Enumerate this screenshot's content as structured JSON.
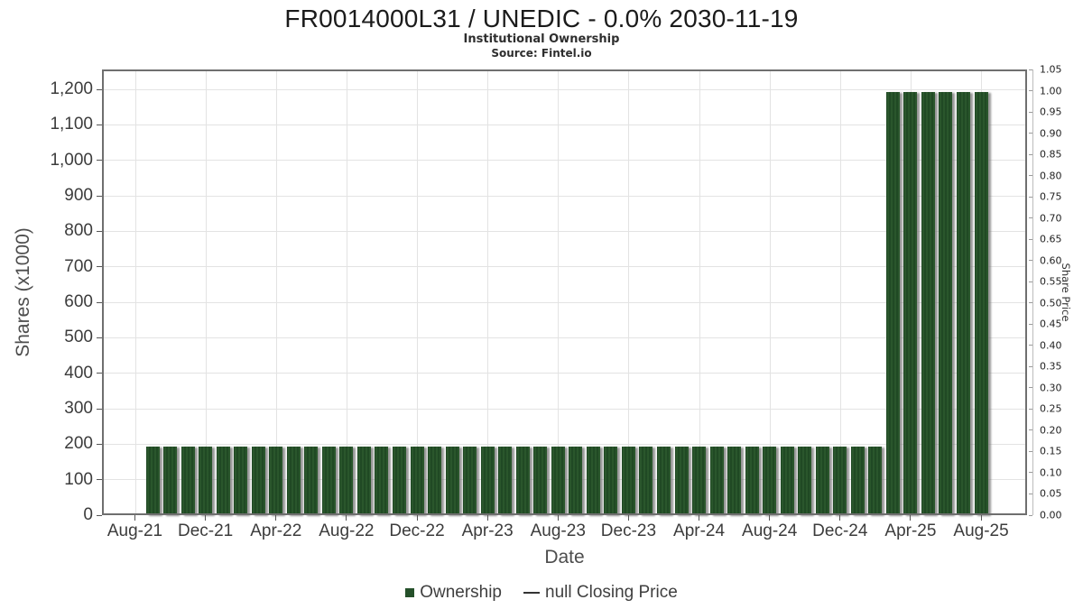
{
  "header": {
    "title": "FR0014000L31 / UNEDIC - 0.0% 2030-11-19",
    "subtitle": "Institutional Ownership",
    "source": "Source: Fintel.io"
  },
  "chart_data": {
    "type": "bar",
    "title": "FR0014000L31 / UNEDIC - 0.0% 2030-11-19",
    "subtitle": "Institutional Ownership",
    "source": "Source: Fintel.io",
    "xlabel": "Date",
    "ylabel_left": "Shares (x1000)",
    "ylabel_right": "Share Price",
    "legend_position": "bottom-center",
    "grid": true,
    "categories": [
      "Sep-21",
      "Oct-21",
      "Nov-21",
      "Dec-21",
      "Jan-22",
      "Feb-22",
      "Mar-22",
      "Apr-22",
      "May-22",
      "Jun-22",
      "Jul-22",
      "Aug-22",
      "Sep-22",
      "Oct-22",
      "Nov-22",
      "Dec-22",
      "Jan-23",
      "Feb-23",
      "Mar-23",
      "Apr-23",
      "May-23",
      "Jun-23",
      "Jul-23",
      "Aug-23",
      "Sep-23",
      "Oct-23",
      "Nov-23",
      "Dec-23",
      "Jan-24",
      "Feb-24",
      "Mar-24",
      "Apr-24",
      "May-24",
      "Jun-24",
      "Jul-24",
      "Aug-24",
      "Sep-24",
      "Oct-24",
      "Nov-24",
      "Dec-24",
      "Jan-25",
      "Feb-25",
      "Mar-25",
      "Apr-25",
      "May-25",
      "Jun-25",
      "Jul-25",
      "Aug-25"
    ],
    "series": [
      {
        "name": "Ownership",
        "type": "bar",
        "color": "#25502a",
        "values": [
          193,
          193,
          193,
          193,
          193,
          193,
          193,
          193,
          193,
          193,
          193,
          193,
          193,
          193,
          193,
          193,
          193,
          193,
          193,
          193,
          193,
          193,
          193,
          193,
          193,
          193,
          193,
          193,
          193,
          193,
          193,
          193,
          193,
          193,
          193,
          193,
          193,
          193,
          193,
          193,
          193,
          193,
          1193,
          1193,
          1193,
          1193,
          1193,
          1193
        ]
      },
      {
        "name": "null Closing Price",
        "type": "line",
        "color": "#333333",
        "values": []
      }
    ],
    "x_tick_labels": [
      "Aug-21",
      "Dec-21",
      "Apr-22",
      "Aug-22",
      "Dec-22",
      "Apr-23",
      "Aug-23",
      "Dec-23",
      "Apr-24",
      "Aug-24",
      "Dec-24",
      "Apr-25",
      "Aug-25"
    ],
    "y_left": {
      "min": 0,
      "max": 1200,
      "step": 100,
      "tick_labels": [
        "0",
        "100",
        "200",
        "300",
        "400",
        "500",
        "600",
        "700",
        "800",
        "900",
        "1,000",
        "1,100",
        "1,200"
      ]
    },
    "y_right": {
      "min": 0.0,
      "max": 1.05,
      "step": 0.05,
      "tick_labels": [
        "0.00",
        "0.05",
        "0.10",
        "0.15",
        "0.20",
        "0.25",
        "0.30",
        "0.35",
        "0.40",
        "0.45",
        "0.50",
        "0.55",
        "0.60",
        "0.65",
        "0.70",
        "0.75",
        "0.80",
        "0.85",
        "0.90",
        "0.95",
        "1.00",
        "1.05"
      ]
    },
    "ylim_left": [
      0,
      1256
    ],
    "ylim_right": [
      0,
      1.05
    ],
    "colors": {
      "bar_green": "#25502a",
      "grid": "#e3e3e3",
      "plot_border": "#6f6f6f",
      "background": "#ffffff"
    }
  }
}
